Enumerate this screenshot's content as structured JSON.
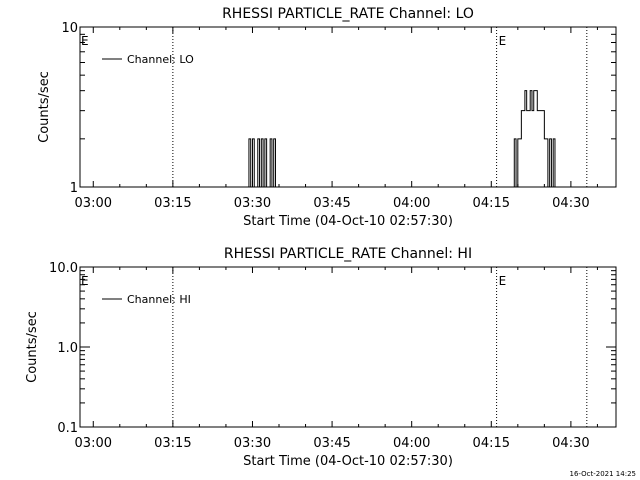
{
  "footer": {
    "timestamp": "16-Oct-2021 14:25"
  },
  "colors": {
    "background": "#ffffff",
    "foreground": "#000000"
  },
  "chart_data": [
    {
      "type": "line",
      "title": "RHESSI PARTICLE_RATE Channel: LO",
      "xlabel": "Start Time (04-Oct-10 02:57:30)",
      "ylabel": "Counts/sec",
      "y_scale": "log",
      "ylim": [
        1,
        10
      ],
      "y_ticks": [
        1,
        10
      ],
      "y_tick_labels": [
        "1",
        "10"
      ],
      "xlim": [
        "02:57:30",
        "04:38:30"
      ],
      "x_ticks": [
        "03:00",
        "03:15",
        "03:30",
        "03:45",
        "04:00",
        "04:15",
        "04:30"
      ],
      "legend": {
        "entries": [
          "Channel: LO"
        ],
        "position": "top-left"
      },
      "event_markers": [
        {
          "time": "03:15",
          "label": ""
        },
        {
          "time": "04:16",
          "label": "E"
        },
        {
          "time": "04:33",
          "label": ""
        }
      ],
      "edge_label": "E",
      "series": [
        {
          "name": "Channel: LO",
          "x": [
            "03:28:00",
            "03:29:00",
            "03:29:20",
            "03:29:40",
            "03:30:00",
            "03:30:20",
            "03:30:40",
            "03:31:00",
            "03:31:20",
            "03:31:40",
            "03:32:00",
            "03:32:20",
            "03:32:40",
            "03:33:00",
            "03:33:20",
            "03:33:40",
            "03:34:00",
            "03:34:20",
            "03:34:40",
            "03:35:00",
            "04:19:00",
            "04:19:20",
            "04:19:40",
            "04:20:00",
            "04:20:20",
            "04:20:40",
            "04:21:00",
            "04:21:20",
            "04:21:40",
            "04:22:00",
            "04:22:20",
            "04:22:40",
            "04:23:00",
            "04:23:20",
            "04:23:40",
            "04:24:00",
            "04:24:20",
            "04:24:40",
            "04:25:00",
            "04:25:20",
            "04:25:40",
            "04:26:00",
            "04:26:20",
            "04:26:40",
            "04:27:00",
            "04:27:20",
            "04:27:40",
            "04:28:00"
          ],
          "y": [
            1,
            1,
            2,
            1,
            2,
            1,
            1,
            2,
            1,
            2,
            1,
            2,
            1,
            1,
            2,
            1,
            2,
            1,
            1,
            1,
            1,
            2,
            1,
            2,
            2,
            3,
            3,
            4,
            3,
            3,
            4,
            3,
            4,
            4,
            3,
            3,
            3,
            3,
            2,
            2,
            1,
            2,
            1,
            2,
            1,
            1,
            1,
            1
          ]
        }
      ]
    },
    {
      "type": "line",
      "title": "RHESSI PARTICLE_RATE Channel: HI",
      "xlabel": "Start Time (04-Oct-10 02:57:30)",
      "ylabel": "Counts/sec",
      "y_scale": "log",
      "ylim": [
        0.1,
        10
      ],
      "y_ticks": [
        0.1,
        1,
        10
      ],
      "y_tick_labels": [
        "0.1",
        "1.0",
        "10.0"
      ],
      "xlim": [
        "02:57:30",
        "04:38:30"
      ],
      "x_ticks": [
        "03:00",
        "03:15",
        "03:30",
        "03:45",
        "04:00",
        "04:15",
        "04:30"
      ],
      "legend": {
        "entries": [
          "Channel: HI"
        ],
        "position": "top-left"
      },
      "event_markers": [
        {
          "time": "03:15",
          "label": ""
        },
        {
          "time": "04:16",
          "label": "E"
        },
        {
          "time": "04:33",
          "label": ""
        }
      ],
      "edge_label": "E",
      "series": [
        {
          "name": "Channel: HI",
          "x": [],
          "y": []
        }
      ]
    }
  ]
}
